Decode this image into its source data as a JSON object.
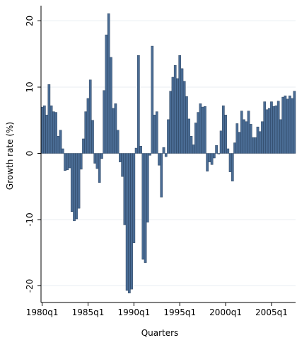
{
  "chart_data": {
    "type": "bar",
    "x_label": "Quarters",
    "y_label": "Growth rate (%)",
    "categories": [
      "1980q1",
      null,
      null,
      null,
      null,
      null,
      null,
      null,
      null,
      null,
      null,
      null,
      null,
      null,
      null,
      null,
      null,
      null,
      null,
      null,
      "1985q1",
      null,
      null,
      null,
      null,
      null,
      null,
      null,
      null,
      null,
      null,
      null,
      null,
      null,
      null,
      null,
      null,
      null,
      null,
      null,
      "1990q1",
      null,
      null,
      null,
      null,
      null,
      null,
      null,
      null,
      null,
      null,
      null,
      null,
      null,
      null,
      null,
      null,
      null,
      null,
      null,
      "1995q1",
      null,
      null,
      null,
      null,
      null,
      null,
      null,
      null,
      null,
      null,
      null,
      null,
      null,
      null,
      null,
      null,
      null,
      null,
      null,
      "2000q1",
      null,
      null,
      null,
      null,
      null,
      null,
      null,
      null,
      null,
      null,
      null,
      null,
      null,
      null,
      null,
      null,
      null,
      null,
      null,
      "2005q1",
      null,
      null,
      null,
      null,
      null,
      null,
      null,
      null,
      null,
      null
    ],
    "values": [
      7,
      7.2,
      5.8,
      10.4,
      7.2,
      6.3,
      6.2,
      2.6,
      3.5,
      0.7,
      -2.6,
      -2.5,
      -2.2,
      -8.8,
      -10.2,
      -9.9,
      -8.3,
      -2.4,
      2.2,
      6.3,
      8.3,
      11.1,
      5,
      -1.5,
      -2.3,
      -4.4,
      -0.8,
      9.5,
      17.9,
      21.1,
      14.5,
      6.8,
      7.5,
      3.5,
      -1.3,
      -3.5,
      -10.8,
      -20.7,
      -21.1,
      -20.5,
      -13.5,
      0.8,
      14.8,
      1.1,
      -16,
      -16.5,
      -10.4,
      -0.3,
      16.2,
      5.8,
      6.3,
      -1.8,
      -6.6,
      0.9,
      -0.5,
      5.1,
      9.4,
      11.5,
      13.3,
      11.3,
      14.8,
      12.8,
      10.9,
      8.6,
      5.2,
      2.6,
      1.3,
      4.6,
      6.2,
      7.5,
      7,
      7.1,
      -2.7,
      -1.3,
      -1.7,
      -0.7,
      1.2,
      -0.1,
      3.4,
      7.2,
      5.8,
      0.7,
      -2.8,
      -4.2,
      1.6,
      4.5,
      3.2,
      6.4,
      5.1,
      4.8,
      6.4,
      4.4,
      2.4,
      2.4,
      4,
      3.3,
      4.8,
      7.8,
      6.6,
      6.8,
      7.8,
      7.1,
      7.2,
      7.9,
      5.1,
      8.5,
      8.7,
      8.2,
      8.7,
      8.3,
      9.4
    ],
    "color": "#4a6c94",
    "ylim": [
      -22.3,
      22.3
    ],
    "yticks": [
      -20,
      -10,
      0,
      10,
      20
    ],
    "grid": true
  }
}
